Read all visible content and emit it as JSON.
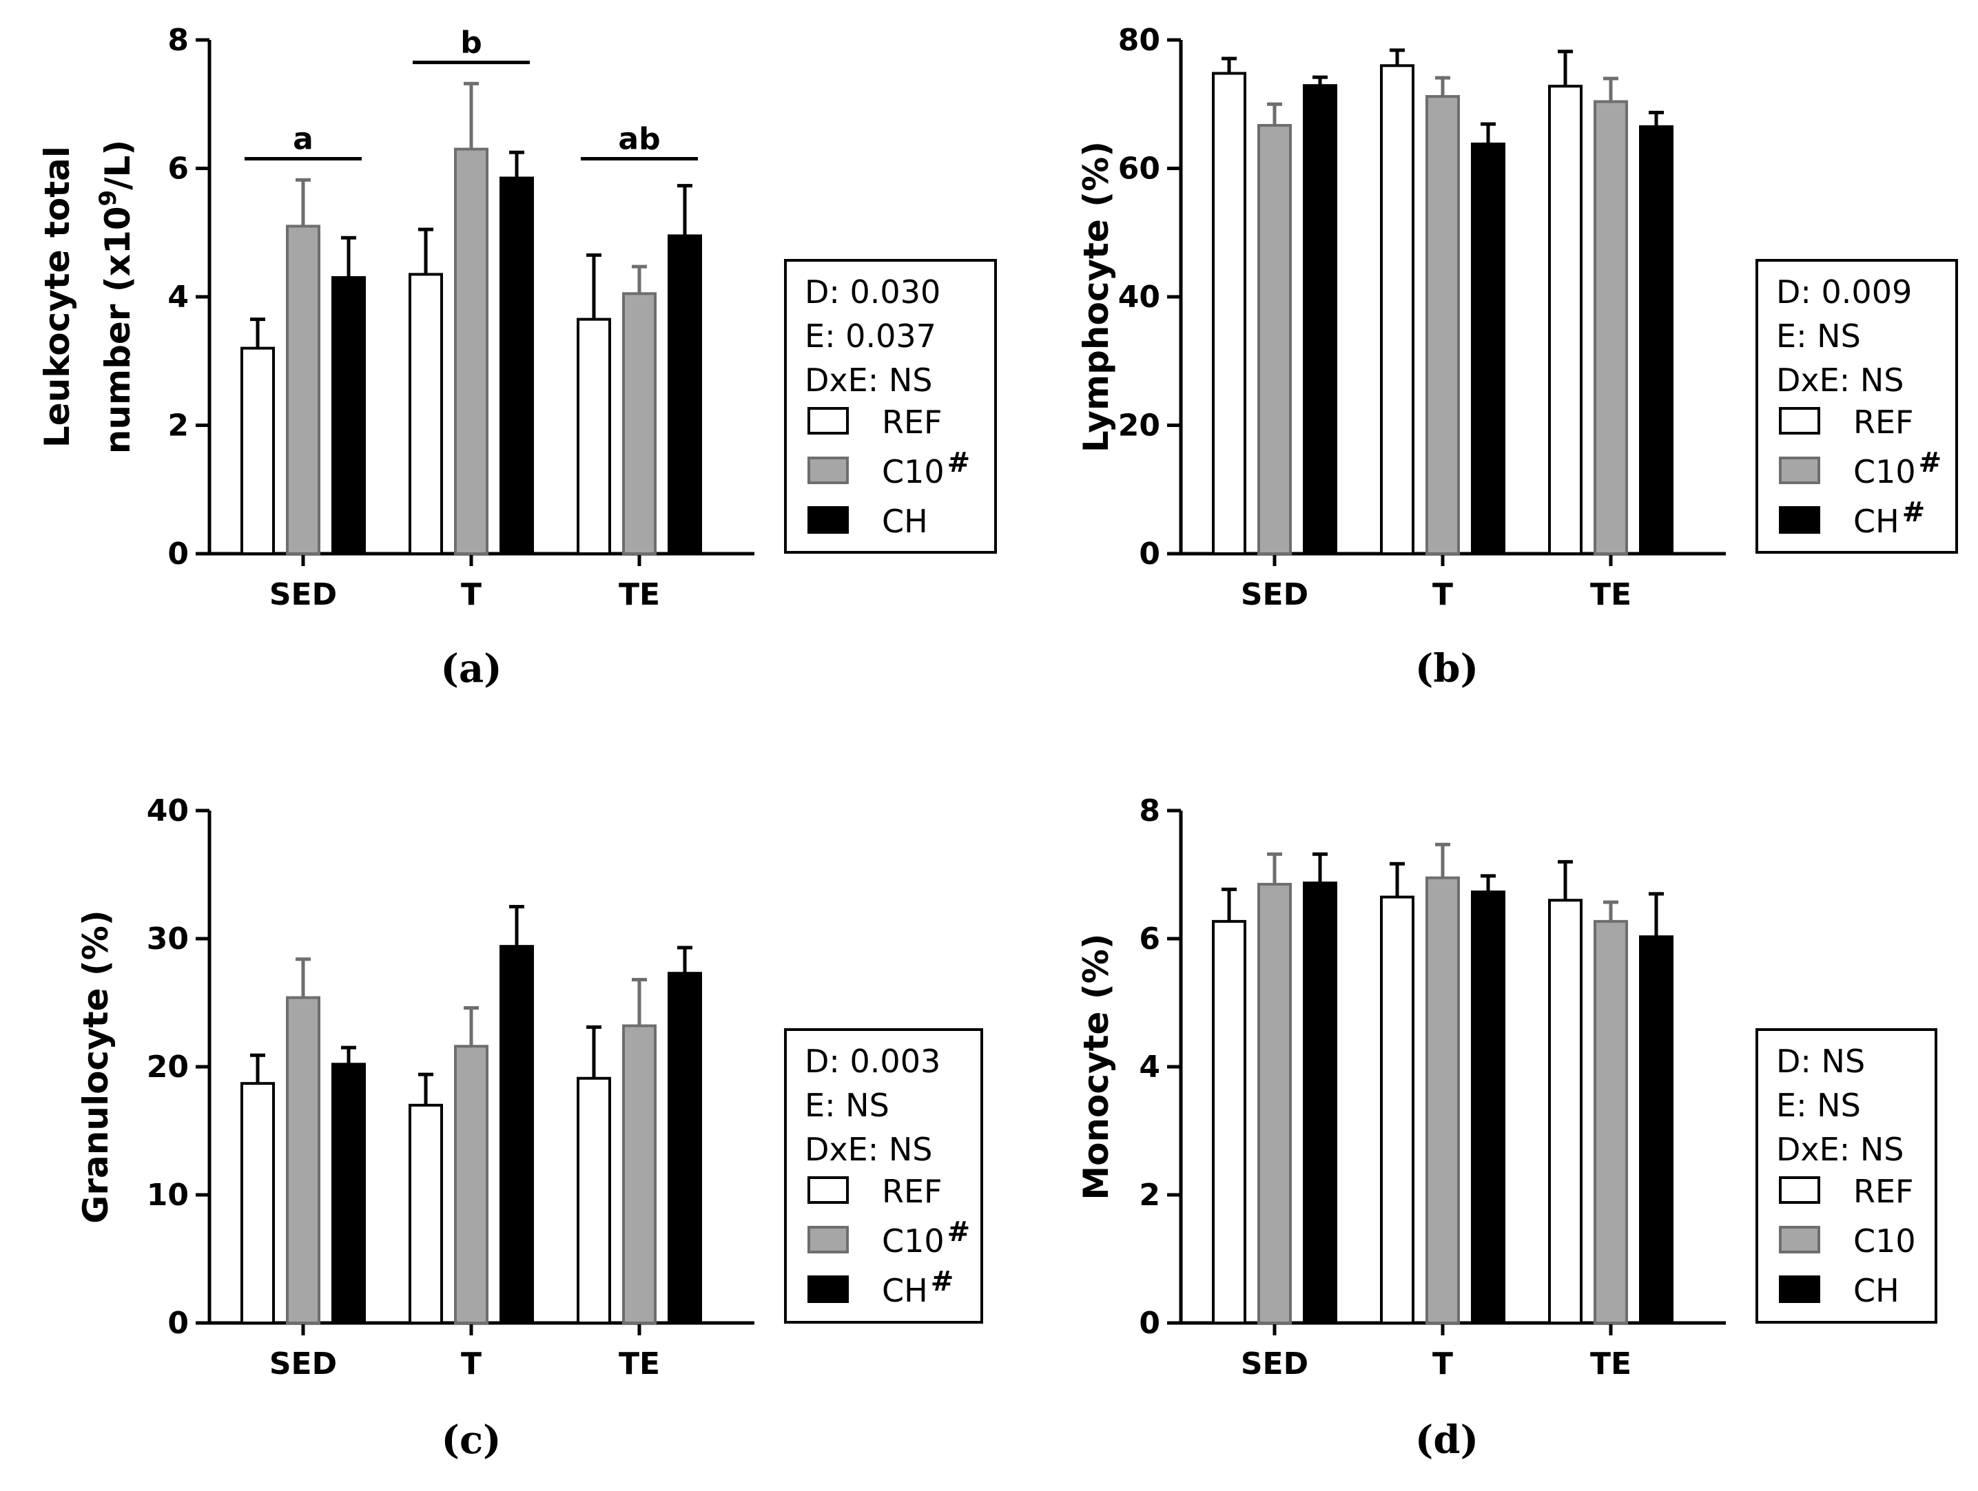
{
  "colors": {
    "REF": "#ffffff",
    "C10": "#a6a6a6",
    "CH": "#000000",
    "axis": "#000000",
    "c10_stroke": "#6e6e6e"
  },
  "chart_data": [
    {
      "type": "bar",
      "panel_label": "(a)",
      "ylabel_line1": "Leukocyte total",
      "ylabel_line2_pre": "number (x10",
      "ylabel_line2_sup": "9",
      "ylabel_line2_post": "/L)",
      "ylim": [
        0,
        8
      ],
      "yticks": [
        0,
        2,
        4,
        6,
        8
      ],
      "categories": [
        "SED",
        "T",
        "TE"
      ],
      "series": [
        {
          "name": "REF",
          "values": [
            3.2,
            4.35,
            3.65
          ],
          "errors": [
            0.45,
            0.7,
            1.0
          ]
        },
        {
          "name": "C10",
          "values": [
            5.1,
            6.3,
            4.05
          ],
          "errors": [
            0.72,
            1.02,
            0.42
          ]
        },
        {
          "name": "CH",
          "values": [
            4.3,
            5.85,
            4.95
          ],
          "errors": [
            0.62,
            0.4,
            0.78
          ]
        }
      ],
      "significance": [
        {
          "category": "SED",
          "label": "a",
          "y": 6.15
        },
        {
          "category": "T",
          "label": "b",
          "y": 7.65
        },
        {
          "category": "TE",
          "label": "ab",
          "y": 6.15
        }
      ],
      "legend": {
        "stats": [
          "D: 0.030",
          "E: 0.037",
          "DxE: NS"
        ],
        "entries": [
          {
            "name": "REF",
            "label": "REF",
            "mark": ""
          },
          {
            "name": "C10",
            "label": "C10",
            "mark": "#"
          },
          {
            "name": "CH",
            "label": "CH",
            "mark": ""
          }
        ]
      }
    },
    {
      "type": "bar",
      "panel_label": "(b)",
      "ylabel_line1": "Lymphocyte (%)",
      "ylim": [
        0,
        80
      ],
      "yticks": [
        0,
        20,
        40,
        60,
        80
      ],
      "categories": [
        "SED",
        "T",
        "TE"
      ],
      "series": [
        {
          "name": "REF",
          "values": [
            74.8,
            76.0,
            72.8
          ],
          "errors": [
            2.3,
            2.4,
            5.4
          ]
        },
        {
          "name": "C10",
          "values": [
            66.7,
            71.2,
            70.4
          ],
          "errors": [
            3.3,
            2.9,
            3.6
          ]
        },
        {
          "name": "CH",
          "values": [
            72.9,
            63.8,
            66.5
          ],
          "errors": [
            1.3,
            3.1,
            2.2
          ]
        }
      ],
      "legend": {
        "stats": [
          "D: 0.009",
          "E: NS",
          "DxE: NS"
        ],
        "entries": [
          {
            "name": "REF",
            "label": "REF",
            "mark": ""
          },
          {
            "name": "C10",
            "label": "C10",
            "mark": "#"
          },
          {
            "name": "CH",
            "label": "CH",
            "mark": "#"
          }
        ]
      }
    },
    {
      "type": "bar",
      "panel_label": "(c)",
      "ylabel_line1": "Granulocyte (%)",
      "ylim": [
        0,
        40
      ],
      "yticks": [
        0,
        10,
        20,
        30,
        40
      ],
      "categories": [
        "SED",
        "T",
        "TE"
      ],
      "series": [
        {
          "name": "REF",
          "values": [
            18.7,
            17.0,
            19.1
          ],
          "errors": [
            2.2,
            2.4,
            4.0
          ]
        },
        {
          "name": "C10",
          "values": [
            25.4,
            21.6,
            23.2
          ],
          "errors": [
            3.0,
            3.0,
            3.6
          ]
        },
        {
          "name": "CH",
          "values": [
            20.2,
            29.4,
            27.3
          ],
          "errors": [
            1.3,
            3.1,
            2.0
          ]
        }
      ],
      "legend": {
        "stats": [
          "D: 0.003",
          "E: NS",
          "DxE: NS"
        ],
        "entries": [
          {
            "name": "REF",
            "label": "REF",
            "mark": ""
          },
          {
            "name": "C10",
            "label": "C10",
            "mark": "#"
          },
          {
            "name": "CH",
            "label": "CH",
            "mark": "#"
          }
        ]
      }
    },
    {
      "type": "bar",
      "panel_label": "(d)",
      "ylabel_line1": "Monocyte (%)",
      "ylim": [
        0,
        8
      ],
      "yticks": [
        0,
        2,
        4,
        6,
        8
      ],
      "categories": [
        "SED",
        "T",
        "TE"
      ],
      "series": [
        {
          "name": "REF",
          "values": [
            6.27,
            6.65,
            6.6
          ],
          "errors": [
            0.5,
            0.52,
            0.6
          ]
        },
        {
          "name": "C10",
          "values": [
            6.85,
            6.95,
            6.27
          ],
          "errors": [
            0.47,
            0.52,
            0.3
          ]
        },
        {
          "name": "CH",
          "values": [
            6.87,
            6.73,
            6.03
          ],
          "errors": [
            0.45,
            0.25,
            0.67
          ]
        }
      ],
      "legend": {
        "stats": [
          "D: NS",
          "E: NS",
          "DxE: NS"
        ],
        "entries": [
          {
            "name": "REF",
            "label": "REF",
            "mark": ""
          },
          {
            "name": "C10",
            "label": "C10",
            "mark": ""
          },
          {
            "name": "CH",
            "label": "CH",
            "mark": ""
          }
        ]
      }
    }
  ]
}
